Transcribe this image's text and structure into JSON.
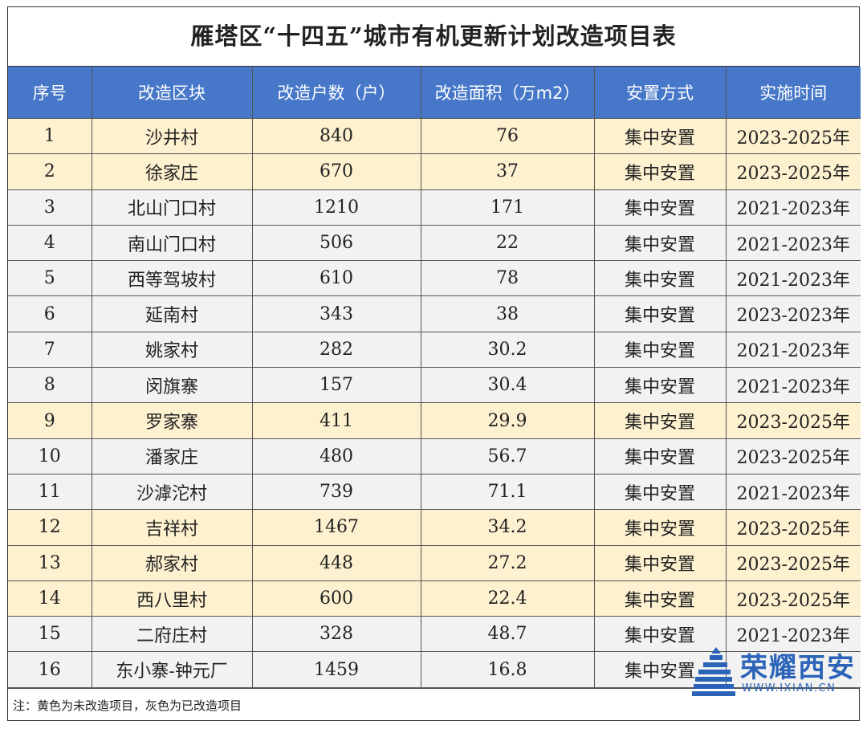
{
  "title": "雁塔区“十四五”城市有机更新计划改造项目表",
  "headers": [
    "序号",
    "改造区块",
    "改造户数（户）",
    "改造面积（万m2）",
    "安置方式",
    "实施时间"
  ],
  "rows": [
    {
      "no": "1",
      "block": "沙井村",
      "households": "840",
      "area": "76",
      "resettle": "集中安置",
      "period": "2023-2025年",
      "status": "yellow"
    },
    {
      "no": "2",
      "block": "徐家庄",
      "households": "670",
      "area": "37",
      "resettle": "集中安置",
      "period": "2023-2025年",
      "status": "yellow"
    },
    {
      "no": "3",
      "block": "北山门口村",
      "households": "1210",
      "area": "171",
      "resettle": "集中安置",
      "period": "2021-2023年",
      "status": "gray"
    },
    {
      "no": "4",
      "block": "南山门口村",
      "households": "506",
      "area": "22",
      "resettle": "集中安置",
      "period": "2021-2023年",
      "status": "gray"
    },
    {
      "no": "5",
      "block": "西等驾坡村",
      "households": "610",
      "area": "78",
      "resettle": "集中安置",
      "period": "2021-2023年",
      "status": "gray"
    },
    {
      "no": "6",
      "block": "延南村",
      "households": "343",
      "area": "38",
      "resettle": "集中安置",
      "period": "2023-2023年",
      "status": "gray"
    },
    {
      "no": "7",
      "block": "姚家村",
      "households": "282",
      "area": "30.2",
      "resettle": "集中安置",
      "period": "2021-2023年",
      "status": "gray"
    },
    {
      "no": "8",
      "block": "闵旗寨",
      "households": "157",
      "area": "30.4",
      "resettle": "集中安置",
      "period": "2021-2023年",
      "status": "gray"
    },
    {
      "no": "9",
      "block": "罗家寨",
      "households": "411",
      "area": "29.9",
      "resettle": "集中安置",
      "period": "2023-2025年",
      "status": "yellow"
    },
    {
      "no": "10",
      "block": "潘家庄",
      "households": "480",
      "area": "56.7",
      "resettle": "集中安置",
      "period": "2023-2025年",
      "status": "gray"
    },
    {
      "no": "11",
      "block": "沙滹沱村",
      "households": "739",
      "area": "71.1",
      "resettle": "集中安置",
      "period": "2021-2023年",
      "status": "gray"
    },
    {
      "no": "12",
      "block": "吉祥村",
      "households": "1467",
      "area": "34.2",
      "resettle": "集中安置",
      "period": "2023-2025年",
      "status": "yellow"
    },
    {
      "no": "13",
      "block": "郝家村",
      "households": "448",
      "area": "27.2",
      "resettle": "集中安置",
      "period": "2023-2025年",
      "status": "yellow"
    },
    {
      "no": "14",
      "block": "西八里村",
      "households": "600",
      "area": "22.4",
      "resettle": "集中安置",
      "period": "2023-2025年",
      "status": "yellow"
    },
    {
      "no": "15",
      "block": "二府庄村",
      "households": "328",
      "area": "48.7",
      "resettle": "集中安置",
      "period": "2021-2023年",
      "status": "gray"
    },
    {
      "no": "16",
      "block": "东小寨-钟元厂",
      "households": "1459",
      "area": "16.8",
      "resettle": "集中安置",
      "period": "",
      "status": "gray"
    }
  ],
  "note": "注：黄色为未改造项目，灰色为已改造项目",
  "watermark": {
    "text": "荣耀西安",
    "url": "WWW.IXIAN.CN"
  },
  "colors": {
    "header_bg": "#4677c9",
    "yellow_row": "#fdf1cf",
    "gray_row": "#f2f2f2",
    "watermark": "#2b63b8"
  }
}
